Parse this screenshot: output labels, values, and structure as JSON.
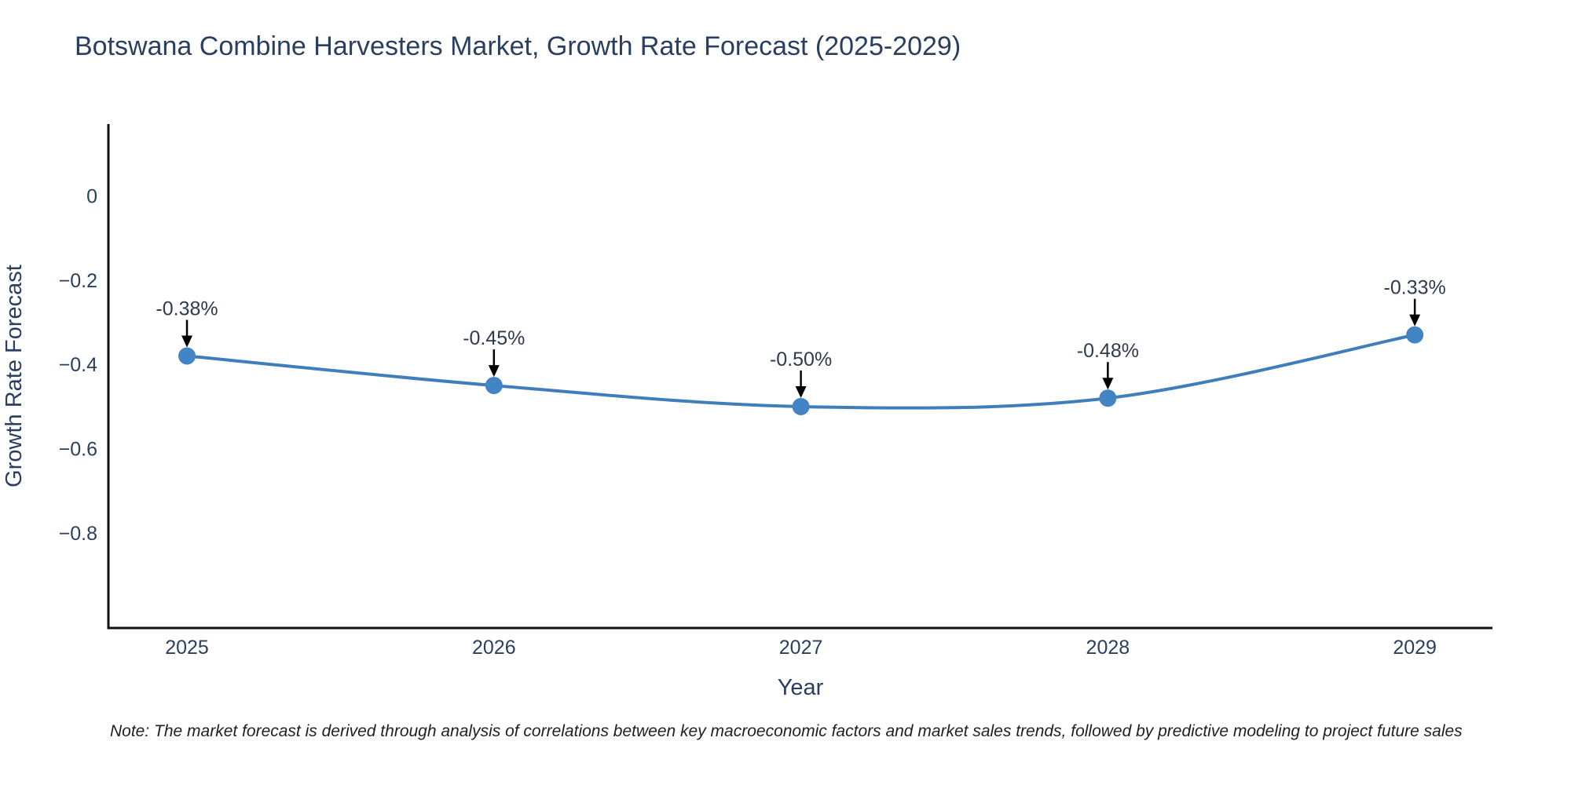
{
  "title": "Botswana Combine Harvesters Market, Growth Rate Forecast (2025-2029)",
  "note": "Note: The market forecast is derived through analysis of correlations between key macroeconomic factors and market sales trends, followed by predictive modeling to project future sales",
  "chart_data": {
    "type": "line",
    "title": "Botswana Combine Harvesters Market, Growth Rate Forecast (2025-2029)",
    "xlabel": "Year",
    "ylabel": "Growth Rate Forecast",
    "x": [
      2025,
      2026,
      2027,
      2028,
      2029
    ],
    "x_tick_labels": [
      "2025",
      "2026",
      "2027",
      "2028",
      "2029"
    ],
    "values": [
      -0.38,
      -0.45,
      -0.5,
      -0.48,
      -0.33
    ],
    "point_labels": [
      "-0.38%",
      "-0.45%",
      "-0.50%",
      "-0.48%",
      "-0.33%"
    ],
    "unit": "%",
    "yticks": [
      0,
      -0.2,
      -0.4,
      -0.6,
      -0.8
    ],
    "ytick_labels": [
      "0",
      "−0.2",
      "−0.4",
      "−0.6",
      "−0.8"
    ],
    "xlim": [
      2024.744,
      2029.253
    ],
    "ylim": [
      -1.025,
      0.17
    ],
    "grid": false,
    "legend": "none",
    "line_shape": "spline",
    "marker": "circle",
    "annotations": "value labels with downward black arrows",
    "colors": {
      "line": "#3f7eba",
      "marker": "#4384c4",
      "axis": "#111111",
      "title_text": "#2a3f5f",
      "tick_text": "#2a3f5f",
      "annotation_text": "#2e3a4e",
      "annotation_arrow": "#000000",
      "background": "#ffffff"
    }
  }
}
